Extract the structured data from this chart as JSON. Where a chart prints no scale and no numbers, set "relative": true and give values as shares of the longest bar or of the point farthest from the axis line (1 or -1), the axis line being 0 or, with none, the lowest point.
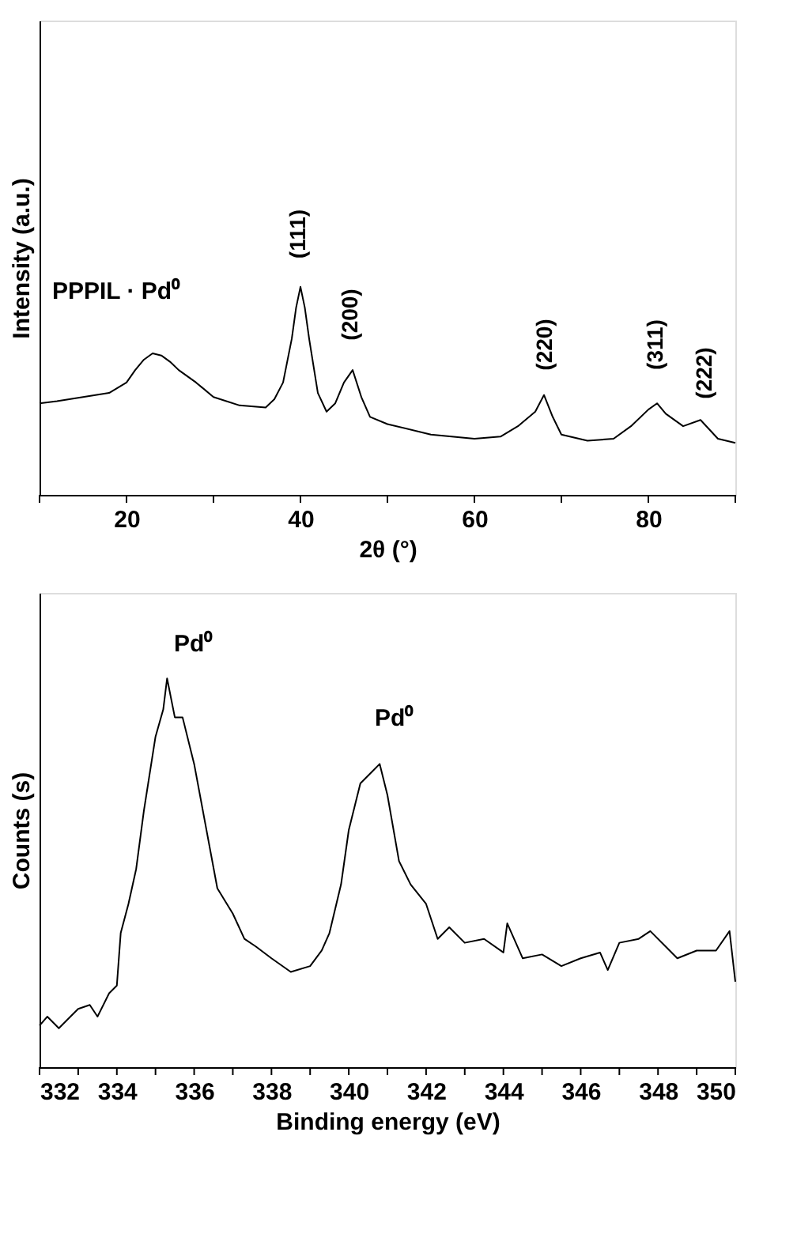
{
  "chart_data": [
    {
      "type": "line",
      "relative": true,
      "xlabel": "2θ (°)",
      "ylabel": "Intensity (a.u.)",
      "xlim": [
        10,
        90
      ],
      "xticks": [
        {
          "value": 10,
          "label": null
        },
        20,
        {
          "value": 30,
          "label": null
        },
        40,
        {
          "value": 50,
          "label": null
        },
        60,
        {
          "value": 70,
          "label": null
        },
        80,
        {
          "value": 90,
          "label": null
        }
      ],
      "grid": false,
      "marker": "none",
      "line_style": "solid",
      "series": [
        {
          "color": "#000000",
          "x": [
            10,
            12,
            15,
            18,
            20,
            21,
            22,
            23,
            24,
            25,
            26,
            28,
            30,
            33,
            36,
            37,
            38,
            39,
            39.5,
            40,
            40.5,
            41,
            42,
            43,
            44,
            45,
            46,
            47,
            48,
            50,
            55,
            60,
            63,
            65,
            67,
            68,
            69,
            70,
            73,
            76,
            78,
            80,
            81,
            82,
            84,
            86,
            88,
            90
          ],
          "values": [
            0.44,
            0.45,
            0.47,
            0.49,
            0.54,
            0.6,
            0.65,
            0.68,
            0.67,
            0.64,
            0.6,
            0.54,
            0.47,
            0.43,
            0.42,
            0.46,
            0.54,
            0.75,
            0.9,
            1.0,
            0.9,
            0.75,
            0.49,
            0.4,
            0.44,
            0.54,
            0.6,
            0.47,
            0.375,
            0.34,
            0.29,
            0.27,
            0.28,
            0.33,
            0.4,
            0.48,
            0.375,
            0.29,
            0.26,
            0.27,
            0.33,
            0.41,
            0.44,
            0.39,
            0.33,
            0.36,
            0.27,
            0.25
          ]
        }
      ],
      "annotations": [
        "PPPIL · Pd⁰",
        "(111)",
        "(200)",
        "(220)",
        "(311)",
        "(222)"
      ]
    },
    {
      "type": "line",
      "relative": true,
      "xlabel": "Binding energy (eV)",
      "ylabel": "Counts (s)",
      "xlim": [
        332,
        350
      ],
      "xticks": [
        332,
        {
          "value": 333,
          "label": null
        },
        334,
        {
          "value": 335,
          "label": null
        },
        336,
        {
          "value": 337,
          "label": null
        },
        338,
        {
          "value": 339,
          "label": null
        },
        340,
        {
          "value": 341,
          "label": null
        },
        342,
        {
          "value": 343,
          "label": null
        },
        344,
        {
          "value": 345,
          "label": null
        },
        346,
        {
          "value": 347,
          "label": null
        },
        348,
        {
          "value": 349,
          "label": null
        },
        350
      ],
      "grid": false,
      "marker": "none",
      "line_style": "solid",
      "series": [
        {
          "color": "#000000",
          "x": [
            332.0,
            332.2,
            332.5,
            332.8,
            333.0,
            333.3,
            333.5,
            333.8,
            334.0,
            334.1,
            334.3,
            334.5,
            334.7,
            335.0,
            335.2,
            335.3,
            335.5,
            335.7,
            336.0,
            336.3,
            336.6,
            337.0,
            337.3,
            337.6,
            338.0,
            338.5,
            339.0,
            339.3,
            339.5,
            339.8,
            340.0,
            340.3,
            340.6,
            340.8,
            341.0,
            341.3,
            341.6,
            342.0,
            342.3,
            342.6,
            343.0,
            343.5,
            344.0,
            344.1,
            344.5,
            345.0,
            345.5,
            346.0,
            346.5,
            346.7,
            347.0,
            347.5,
            347.8,
            348.2,
            348.5,
            349.0,
            349.5,
            349.85,
            350.0
          ],
          "values": [
            0.107,
            0.13,
            0.1,
            0.13,
            0.15,
            0.16,
            0.13,
            0.19,
            0.21,
            0.345,
            0.42,
            0.51,
            0.66,
            0.85,
            0.92,
            1.0,
            0.9,
            0.9,
            0.78,
            0.62,
            0.46,
            0.395,
            0.33,
            0.31,
            0.28,
            0.245,
            0.26,
            0.3,
            0.345,
            0.47,
            0.61,
            0.73,
            0.76,
            0.78,
            0.7,
            0.53,
            0.47,
            0.42,
            0.33,
            0.36,
            0.32,
            0.33,
            0.295,
            0.37,
            0.28,
            0.29,
            0.26,
            0.28,
            0.295,
            0.25,
            0.32,
            0.33,
            0.35,
            0.31,
            0.28,
            0.3,
            0.3,
            0.35,
            0.22
          ]
        }
      ],
      "annotations": [
        "Pd⁰",
        "Pd⁰"
      ]
    }
  ]
}
